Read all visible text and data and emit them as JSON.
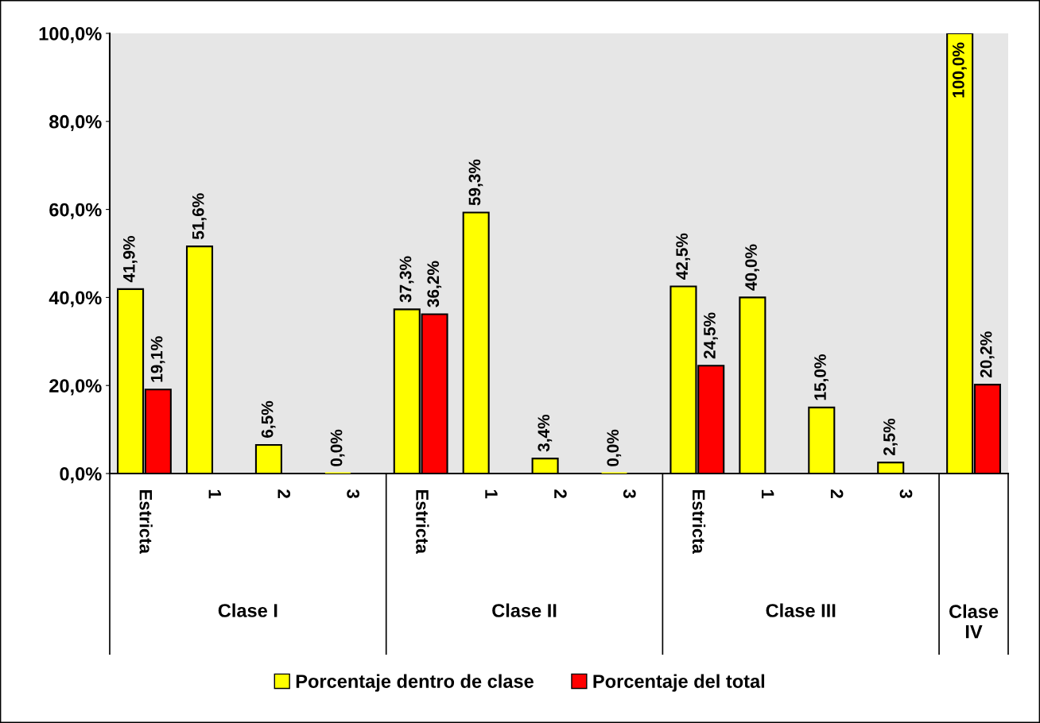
{
  "chart_data": {
    "type": "bar",
    "categories": [
      "Estricta",
      "1",
      "2",
      "3",
      "Estricta",
      "1",
      "2",
      "3",
      "Estricta",
      "1",
      "2",
      "3",
      null
    ],
    "series": [
      {
        "name": "Porcentaje dentro de clase",
        "color": "#ffff00",
        "values": [
          41.9,
          51.6,
          6.5,
          0.0,
          37.3,
          59.3,
          3.4,
          0.0,
          42.5,
          40.0,
          15.0,
          2.5,
          100.0
        ],
        "value_labels": [
          "41,9%",
          "51,6%",
          "6,5%",
          "0,0%",
          "37,3%",
          "59,3%",
          "3,4%",
          "0,0%",
          "42,5%",
          "40,0%",
          "15,0%",
          "2,5%",
          "100,0%"
        ]
      },
      {
        "name": "Porcentaje del total",
        "color": "#ff0000",
        "values": [
          19.1,
          null,
          null,
          null,
          36.2,
          null,
          null,
          null,
          24.5,
          null,
          null,
          null,
          20.2
        ],
        "value_labels": [
          "19,1%",
          null,
          null,
          null,
          "36,2%",
          null,
          null,
          null,
          "24,5%",
          null,
          null,
          null,
          "20,2%"
        ]
      }
    ],
    "ylim": [
      0,
      100
    ],
    "yticks": [
      {
        "value": 0,
        "label": "0,0%"
      },
      {
        "value": 20,
        "label": "20,0%"
      },
      {
        "value": 40,
        "label": "40,0%"
      },
      {
        "value": 60,
        "label": "60,0%"
      },
      {
        "value": 80,
        "label": "80,0%"
      },
      {
        "value": 100,
        "label": "100,0%"
      }
    ],
    "annotations": [
      "Clase I",
      "Clase II",
      "Clase III",
      "Clase IV"
    ],
    "grid": false,
    "legend": "bottom"
  }
}
